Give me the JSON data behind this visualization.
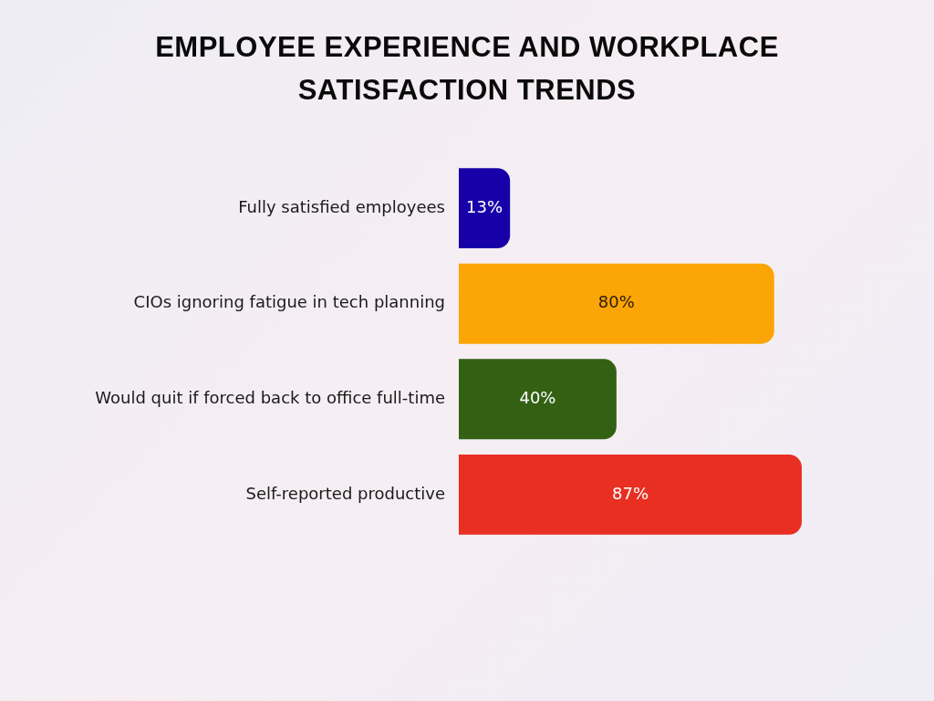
{
  "chart_data": {
    "type": "bar",
    "orientation": "horizontal",
    "title": "EMPLOYEE EXPERIENCE AND WORKPLACE SATISFACTION TRENDS",
    "categories": [
      "Fully satisfied employees",
      "CIOs ignoring fatigue in tech planning",
      "Would quit if forced back to office full-time",
      "Self-reported productive"
    ],
    "values": [
      13,
      80,
      40,
      87
    ],
    "colors": [
      "#1800a8",
      "#fba506",
      "#336114",
      "#e82f22"
    ],
    "value_labels": [
      "13%",
      "80%",
      "40%",
      "87%"
    ]
  }
}
